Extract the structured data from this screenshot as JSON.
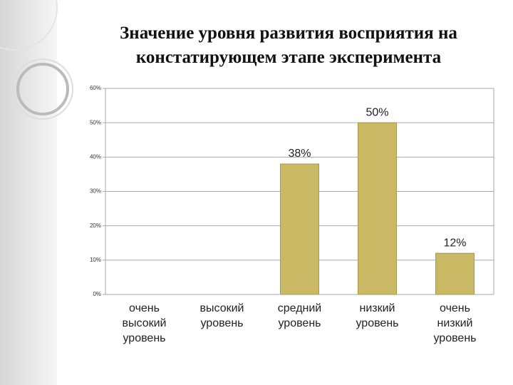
{
  "chart_data": {
    "type": "bar",
    "title": "Значение уровня развития восприятия на констатирующем этапе эксперимента",
    "categories": [
      "очень высокий уровень",
      "высокий уровень",
      "средний уровень",
      "низкий уровень",
      "очень низкий уровень"
    ],
    "values": [
      0,
      0,
      38,
      50,
      12
    ],
    "value_labels": [
      null,
      null,
      "38%",
      "50%",
      "12%"
    ],
    "color": "#c9b965",
    "ylim": [
      0,
      60
    ],
    "yticks": [
      {
        "value": 0,
        "label": "0%"
      },
      {
        "value": 10,
        "label": "10%"
      },
      {
        "value": 20,
        "label": "20%"
      },
      {
        "value": 30,
        "label": "30%"
      },
      {
        "value": 40,
        "label": "40%"
      },
      {
        "value": 50,
        "label": "50%"
      },
      {
        "value": 60,
        "label": "60%"
      }
    ],
    "grid": true
  }
}
